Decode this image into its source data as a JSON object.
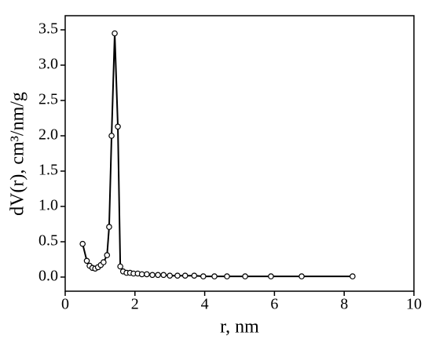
{
  "chart_data": {
    "type": "line",
    "x_label": "r, nm",
    "y_label": "dV(r), cm³/nm/g",
    "x": [
      0.5,
      0.62,
      0.7,
      0.78,
      0.86,
      0.94,
      1.02,
      1.1,
      1.2,
      1.26,
      1.33,
      1.42,
      1.51,
      1.58,
      1.66,
      1.76,
      1.86,
      1.96,
      2.08,
      2.2,
      2.34,
      2.5,
      2.66,
      2.82,
      3.0,
      3.22,
      3.44,
      3.7,
      3.96,
      4.28,
      4.64,
      5.16,
      5.9,
      6.78,
      8.24
    ],
    "series": [
      {
        "color": "#000000",
        "values": [
          0.47,
          0.23,
          0.16,
          0.13,
          0.12,
          0.14,
          0.17,
          0.21,
          0.31,
          0.71,
          2.0,
          3.45,
          2.13,
          0.15,
          0.08,
          0.06,
          0.06,
          0.05,
          0.05,
          0.04,
          0.04,
          0.03,
          0.03,
          0.03,
          0.02,
          0.02,
          0.02,
          0.02,
          0.01,
          0.01,
          0.01,
          0.01,
          0.01,
          0.01,
          0.01
        ]
      }
    ],
    "xlim": [
      0,
      10
    ],
    "xticks": [
      0,
      2,
      4,
      6,
      8,
      10
    ],
    "ylim": [
      -0.2,
      3.7
    ],
    "yticks": [
      {
        "value": 0,
        "label": "0.0"
      },
      {
        "value": 0.5,
        "label": "0.5"
      },
      {
        "value": 1,
        "label": "1.0"
      },
      {
        "value": 1.5,
        "label": "1.5"
      },
      {
        "value": 2,
        "label": "2.0"
      },
      {
        "value": 2.5,
        "label": "2.5"
      },
      {
        "value": 3,
        "label": "3.0"
      },
      {
        "value": 3.5,
        "label": "3.5"
      }
    ],
    "grid": false
  }
}
